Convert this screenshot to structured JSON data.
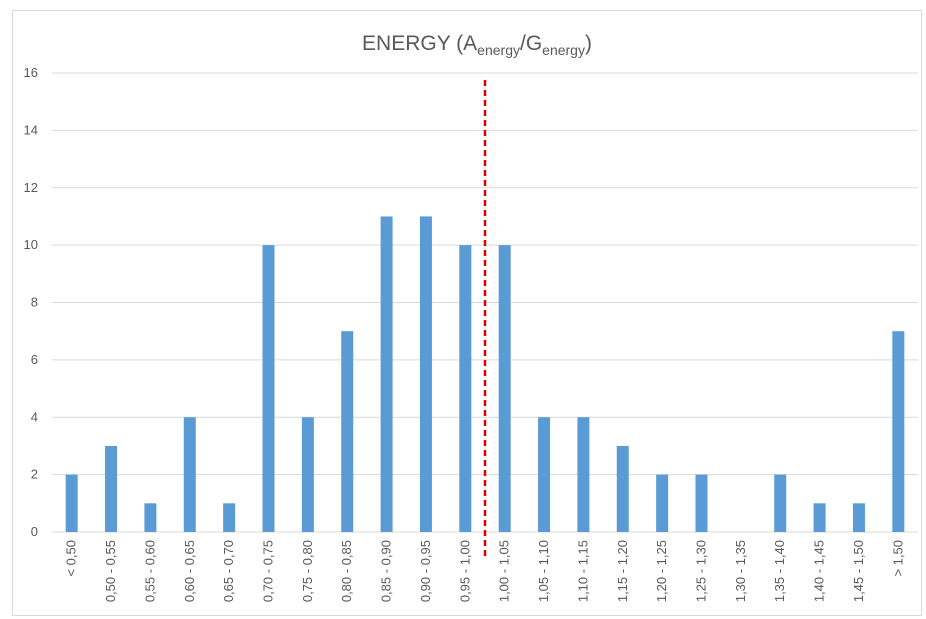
{
  "chart_data": {
    "type": "bar",
    "title": {
      "main": "ENERGY (A",
      "sub1": "energy",
      "mid": "/G",
      "sub2": "energy",
      "end": ")"
    },
    "categories": [
      "< 0,50",
      "0,50 - 0,55",
      "0,55 - 0,60",
      "0,60 - 0,65",
      "0,65 - 0,70",
      "0,70 - 0,75",
      "0,75 - 0,80",
      "0,80 - 0,85",
      "0,85 - 0,90",
      "0,90 - 0,95",
      "0,95 - 1,00",
      "1,00 - 1,05",
      "1,05 - 1,10",
      "1,10 - 1,15",
      "1,15 - 1,20",
      "1,20 - 1,25",
      "1,25 - 1,30",
      "1,30 - 1,35",
      "1,35 - 1,40",
      "1,40 - 1,45",
      "1,45 - 1,50",
      "> 1,50"
    ],
    "values": [
      2,
      3,
      1,
      4,
      1,
      10,
      4,
      7,
      11,
      11,
      10,
      10,
      4,
      4,
      3,
      2,
      2,
      0,
      2,
      1,
      1,
      7
    ],
    "yticks": [
      "0",
      "2",
      "4",
      "6",
      "8",
      "10",
      "12",
      "14",
      "16"
    ],
    "ylim": [
      0,
      16
    ],
    "grid": true,
    "reference_line": {
      "value": 1.0,
      "style": "dashed",
      "color": "#e00000"
    },
    "colors": {
      "bar": "#5b9bd5",
      "grid": "#d9d9d9",
      "text": "#595959"
    }
  }
}
